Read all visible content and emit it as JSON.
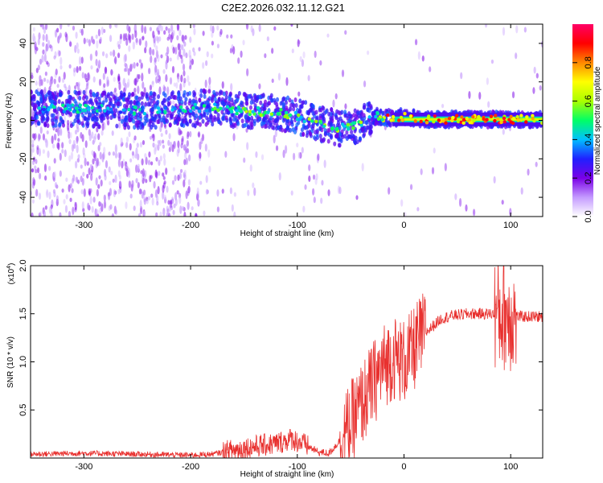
{
  "title": "C2E2.2026.032.11.12.G21",
  "chart_data": [
    {
      "type": "heatmap",
      "xlabel": "Height of straight line (km)",
      "ylabel": "Frequency (Hz)",
      "xlim": [
        -350,
        130
      ],
      "ylim": [
        -50,
        50
      ],
      "xticks": [
        -300,
        -200,
        -100,
        0,
        100
      ],
      "xtick_labels": [
        "-300",
        "-200",
        "-100",
        "0",
        "100"
      ],
      "yticks": [
        -40,
        -20,
        0,
        20,
        40
      ],
      "ytick_labels": [
        "-40",
        "-20",
        "0",
        "20",
        "40"
      ],
      "ridge_center_hz": [
        [
          -350,
          6
        ],
        [
          -300,
          6
        ],
        [
          -250,
          5
        ],
        [
          -200,
          6
        ],
        [
          -180,
          7
        ],
        [
          -150,
          5
        ],
        [
          -120,
          4
        ],
        [
          -100,
          2
        ],
        [
          -80,
          -2
        ],
        [
          -60,
          -4
        ],
        [
          -45,
          -3
        ],
        [
          -35,
          1
        ],
        [
          -25,
          2
        ],
        [
          -10,
          1
        ],
        [
          0,
          2
        ],
        [
          20,
          0.5
        ],
        [
          60,
          0.5
        ],
        [
          100,
          0.5
        ],
        [
          130,
          0.5
        ]
      ],
      "colorbar": {
        "label": "Normalized spectral amplitude",
        "range": [
          0,
          1
        ],
        "ticks": [
          0.0,
          0.2,
          0.4,
          0.6,
          0.8
        ],
        "tick_labels": [
          "0.0",
          "0.2",
          "0.4",
          "0.6",
          "0.8"
        ],
        "colors": [
          "#ffffff",
          "#c49bff",
          "#7a00e6",
          "#2020ff",
          "#00bfff",
          "#00ff66",
          "#aaff00",
          "#ffff00",
          "#ff8800",
          "#ff0000",
          "#ff0066"
        ]
      }
    },
    {
      "type": "line",
      "xlabel": "Height of straight line (km)",
      "ylabel": "SNR (10 * v/v)",
      "scale_label": "(x10",
      "scale_exponent": "4",
      "xlim": [
        -350,
        130
      ],
      "ylim": [
        0,
        2.0
      ],
      "xticks": [
        -300,
        -200,
        -100,
        0,
        100
      ],
      "xtick_labels": [
        "-300",
        "-200",
        "-100",
        "0",
        "100"
      ],
      "yticks": [
        0.5,
        1.0,
        1.5,
        2.0
      ],
      "ytick_labels": [
        "0.5",
        "1.0",
        "1.5",
        "2.0"
      ],
      "color": "#e8302e",
      "series": [
        {
          "name": "SNR",
          "x": [
            -350,
            -300,
            -250,
            -200,
            -180,
            -160,
            -140,
            -120,
            -105,
            -95,
            -80,
            -70,
            -55,
            -45,
            -40,
            -30,
            -20,
            -10,
            0,
            8,
            15,
            25,
            35,
            45,
            60,
            80,
            90,
            95,
            100,
            110,
            120,
            130
          ],
          "y": [
            0.04,
            0.05,
            0.04,
            0.03,
            0.04,
            0.08,
            0.12,
            0.15,
            0.2,
            0.15,
            0.06,
            0.05,
            0.25,
            0.45,
            0.55,
            0.75,
            0.95,
            1.05,
            1.0,
            1.1,
            1.25,
            1.35,
            1.45,
            1.48,
            1.5,
            1.5,
            1.5,
            1.5,
            1.48,
            1.47,
            1.47,
            1.47
          ]
        }
      ]
    }
  ]
}
